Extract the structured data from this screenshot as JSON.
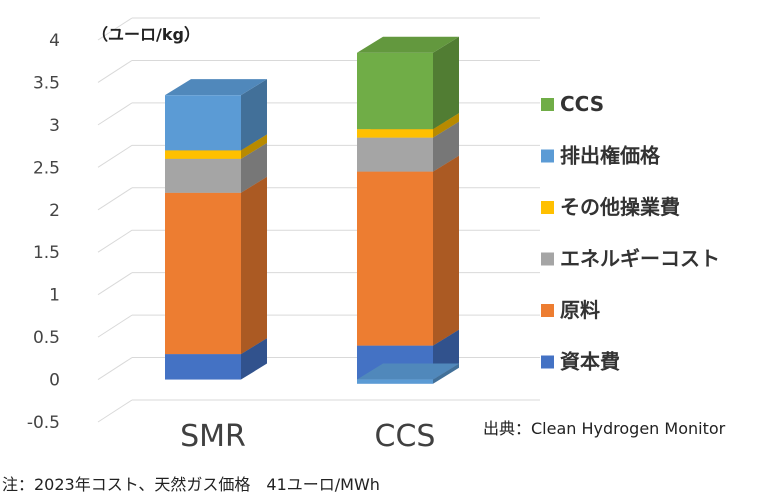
{
  "chart_data": {
    "type": "bar",
    "stacked": true,
    "three_d": true,
    "unit_label": "（ユーロ/kg）",
    "categories": [
      "SMR",
      "CCS"
    ],
    "series": [
      {
        "name": "資本費",
        "color": "#4472C4",
        "values": [
          0.3,
          0.4
        ]
      },
      {
        "name": "原料",
        "color": "#ED7D31",
        "values": [
          1.9,
          2.05
        ]
      },
      {
        "name": "エネルギーコスト",
        "color": "#A5A5A5",
        "values": [
          0.4,
          0.4
        ]
      },
      {
        "name": "その他操業費",
        "color": "#FFC000",
        "values": [
          0.1,
          0.1
        ]
      },
      {
        "name": "排出権価格",
        "color": "#5B9BD5",
        "values": [
          0.65,
          -0.05
        ]
      },
      {
        "name": "CCS",
        "color": "#70AD47",
        "values": [
          0,
          0.9
        ]
      }
    ],
    "ylim": [
      -0.5,
      4
    ],
    "yticks": [
      "-0.5",
      "0",
      "0.5",
      "1",
      "1.5",
      "2",
      "2.5",
      "3",
      "3.5",
      "4"
    ],
    "gridlines": true,
    "legend": "right"
  },
  "source_note": "出典：Clean Hydrogen Monitor",
  "footnote": "注：2023年コスト、天然ガス価格　41ユーロ/MWh"
}
